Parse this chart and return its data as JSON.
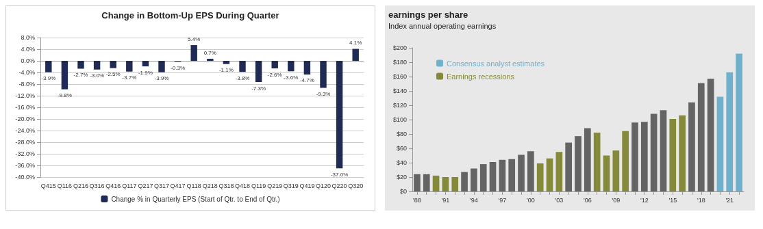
{
  "chart_data": [
    {
      "type": "bar",
      "title": "Change in Bottom-Up EPS During Quarter",
      "categories": [
        "Q415",
        "Q116",
        "Q216",
        "Q316",
        "Q416",
        "Q117",
        "Q217",
        "Q317",
        "Q417",
        "Q118",
        "Q218",
        "Q318",
        "Q418",
        "Q119",
        "Q219",
        "Q319",
        "Q419",
        "Q120",
        "Q220",
        "Q320"
      ],
      "series": [
        {
          "name": "Change % in Quarterly EPS (Start of Qtr. to End of Qtr.)",
          "color": "#1f2a55",
          "values": [
            -3.9,
            -9.8,
            -2.7,
            -3.0,
            -2.5,
            -3.7,
            -1.9,
            -3.9,
            -0.3,
            5.4,
            0.7,
            -1.1,
            -3.8,
            -7.3,
            -2.6,
            -3.6,
            -4.7,
            -9.3,
            -37.0,
            4.1
          ],
          "value_labels": [
            "-3.9%",
            "-9.8%",
            "-2.7%",
            "-3.0%",
            "-2.5%",
            "-3.7%",
            "-1.9%",
            "-3.9%",
            "-0.3%",
            "5.4%",
            "0.7%",
            "-1.1%",
            "-3.8%",
            "-7.3%",
            "-2.6%",
            "-3.6%",
            "-4.7%",
            "-9.3%",
            "-37.0%",
            "4.1%"
          ]
        }
      ],
      "ylim": [
        -40,
        8
      ],
      "yticks": [
        {
          "value": -40,
          "label": "-40.0%"
        },
        {
          "value": -36,
          "label": "-36.0%"
        },
        {
          "value": -32,
          "label": "-32.0%"
        },
        {
          "value": -28,
          "label": "-28.0%"
        },
        {
          "value": -24,
          "label": "-24.0%"
        },
        {
          "value": -20,
          "label": "-20.0%"
        },
        {
          "value": -16,
          "label": "-16.0%"
        },
        {
          "value": -12,
          "label": "-12.0%"
        },
        {
          "value": -8,
          "label": "-8.0%"
        },
        {
          "value": -4,
          "label": "-4.0%"
        },
        {
          "value": 0,
          "label": "0.0%"
        },
        {
          "value": 4,
          "label": "4.0%"
        },
        {
          "value": 8,
          "label": "8.0%"
        }
      ],
      "grid": "y",
      "legend": "bottom"
    },
    {
      "type": "bar",
      "title": "earnings per share",
      "subtitle": "Index annual operating earnings",
      "categories": [
        "'88",
        null,
        null,
        "'91",
        null,
        null,
        "'94",
        null,
        null,
        "'97",
        null,
        null,
        "'00",
        null,
        null,
        "'03",
        null,
        null,
        "'06",
        null,
        null,
        "'09",
        null,
        null,
        "'12",
        null,
        null,
        "'15",
        null,
        null,
        "'18",
        null,
        null,
        "'21",
        null
      ],
      "series": [
        {
          "color": "#646464",
          "values": [
            24,
            24,
            null,
            null,
            null,
            27,
            32,
            38,
            41,
            44,
            45,
            51,
            56,
            null,
            null,
            null,
            68,
            77,
            88,
            null,
            null,
            null,
            null,
            96,
            97,
            108,
            113,
            null,
            null,
            124,
            151,
            157,
            null,
            null,
            null
          ]
        },
        {
          "name": "Consensus analyst estimates",
          "color": "#6fb0cc",
          "values": [
            null,
            null,
            null,
            null,
            null,
            null,
            null,
            null,
            null,
            null,
            null,
            null,
            null,
            null,
            null,
            null,
            null,
            null,
            null,
            null,
            null,
            null,
            null,
            null,
            null,
            null,
            null,
            null,
            null,
            null,
            null,
            null,
            132,
            166,
            192
          ]
        },
        {
          "name": "Earnings recessions",
          "color": "#858a3a",
          "values": [
            null,
            null,
            22,
            20,
            20,
            null,
            null,
            null,
            null,
            null,
            null,
            null,
            null,
            39,
            46,
            55,
            null,
            null,
            null,
            82,
            50,
            57,
            84,
            null,
            null,
            null,
            null,
            101,
            106,
            null,
            null,
            null,
            null,
            null,
            null
          ]
        }
      ],
      "ylim": [
        0,
        200
      ],
      "yticks": [
        {
          "value": 0,
          "label": "$0"
        },
        {
          "value": 20,
          "label": "$20"
        },
        {
          "value": 40,
          "label": "$40"
        },
        {
          "value": 60,
          "label": "$60"
        },
        {
          "value": 80,
          "label": "$80"
        },
        {
          "value": 100,
          "label": "$100"
        },
        {
          "value": 120,
          "label": "$120"
        },
        {
          "value": 140,
          "label": "$140"
        },
        {
          "value": 160,
          "label": "$160"
        },
        {
          "value": 180,
          "label": "$180"
        },
        {
          "value": 200,
          "label": "$200"
        }
      ],
      "grid": false,
      "legend": "top left"
    }
  ]
}
